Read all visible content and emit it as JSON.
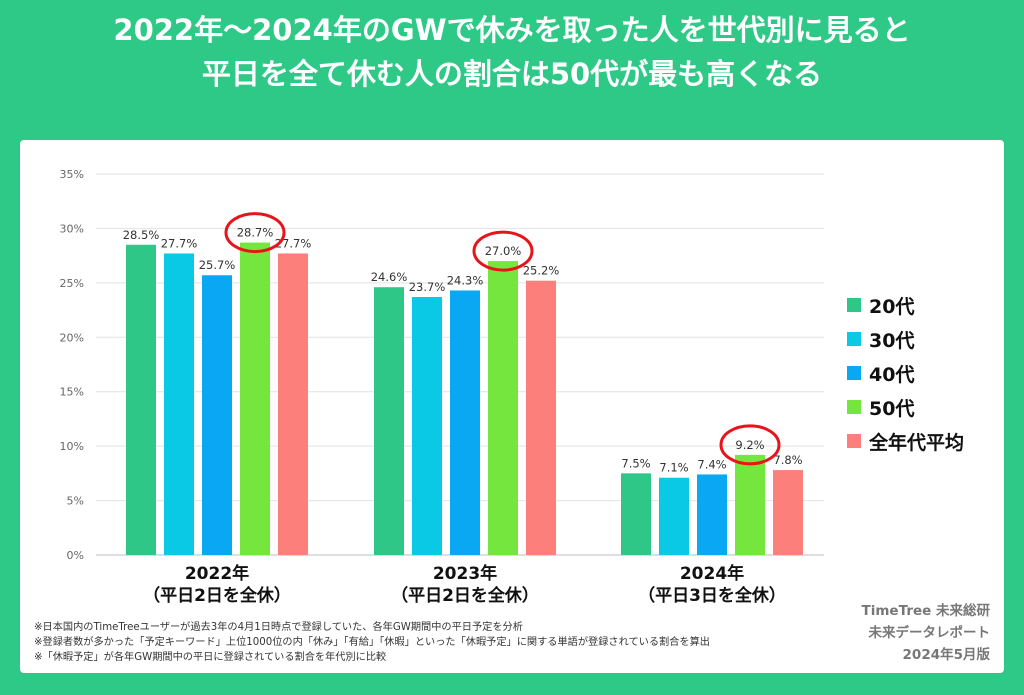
{
  "headline": {
    "line1": "2022年～2024年のGWで休みを取った人を世代別に見ると",
    "line2": "平日を全て休む人の割合は50代が最も高くなる"
  },
  "chart_data": {
    "type": "bar",
    "categories": [
      "2022年\n（平日2日を全休）",
      "2023年\n（平日2日を全休）",
      "2024年\n（平日3日を全休）"
    ],
    "series": [
      {
        "name": "20代",
        "color": "#2ec787",
        "values": [
          28.5,
          24.6,
          7.5
        ]
      },
      {
        "name": "30代",
        "color": "#09c9e4",
        "values": [
          27.7,
          23.7,
          7.1
        ]
      },
      {
        "name": "40代",
        "color": "#0aa8f2",
        "values": [
          25.7,
          24.3,
          7.4
        ]
      },
      {
        "name": "50代",
        "color": "#74e63e",
        "values": [
          28.7,
          27.0,
          9.2
        ]
      },
      {
        "name": "全年代平均",
        "color": "#fd7f7c",
        "values": [
          27.7,
          25.2,
          7.8
        ]
      }
    ],
    "data_labels": [
      [
        "28.5%",
        "27.7%",
        "25.7%",
        "28.7%",
        "27.7%"
      ],
      [
        "24.6%",
        "23.7%",
        "24.3%",
        "27.0%",
        "25.2%"
      ],
      [
        "7.5%",
        "7.1%",
        "7.4%",
        "9.2%",
        "7.8%"
      ]
    ],
    "ylim": [
      0,
      35
    ],
    "yticks": [
      "0%",
      "5%",
      "10%",
      "15%",
      "20%",
      "25%",
      "30%",
      "35%"
    ],
    "grid": true,
    "legend_position": "right",
    "highlight_series": "50代",
    "highlight_color": "#e8141b"
  },
  "notes": [
    "※日本国内のTimeTreeユーザーが過去3年の4月1日時点で登録していた、各年GW期間中の平日予定を分析",
    "※登録者数が多かった「予定キーワード」上位1000位の内「休み」「有給」「休暇」といった「休暇予定」に関する単語が登録されている割合を算出",
    "※「休暇予定」が各年GW期間中の平日に登録されている割合を年代別に比較"
  ],
  "credit": {
    "line1": "TimeTree 未来総研",
    "line2": "未来データレポート",
    "line3": "2024年5月版"
  }
}
